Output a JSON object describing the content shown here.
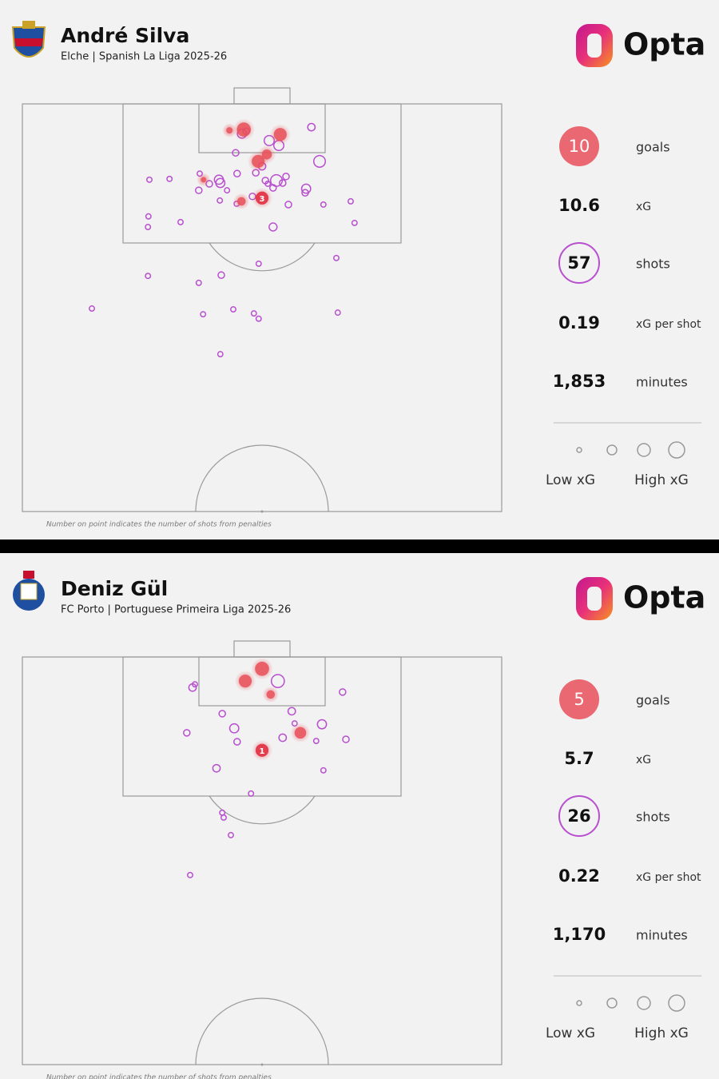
{
  "panels": [
    {
      "player": "André Silva",
      "team": "Elche | Spanish La Liga 2025-26",
      "brand": "Opta",
      "stats": [
        {
          "value": 10,
          "label": "goals"
        },
        {
          "value": "10.6",
          "label": "xG"
        },
        {
          "value": 57,
          "label": "shots"
        },
        {
          "value": "0.19",
          "label": "xG per shot"
        },
        {
          "value": "1,853",
          "label": "minutes"
        }
      ],
      "legend": [
        "Low xG",
        "High xG"
      ],
      "note": "Number on point indicates the number of shots from penalties",
      "shots": [
        {
          "x": 43.2,
          "y": 6.5,
          "xg": 0.05,
          "goal": true
        },
        {
          "x": 46.2,
          "y": 6.3,
          "xg": 0.5,
          "goal": true
        },
        {
          "x": 53.8,
          "y": 7.5,
          "xg": 0.4,
          "goal": true
        },
        {
          "x": 51.0,
          "y": 12.4,
          "xg": 0.2,
          "goal": true
        },
        {
          "x": 49.2,
          "y": 14.1,
          "xg": 0.4,
          "goal": true
        },
        {
          "x": 37.8,
          "y": 18.6,
          "xg": 0.03,
          "goal": true
        },
        {
          "x": 45.7,
          "y": 23.9,
          "xg": 0.12,
          "goal": true
        },
        {
          "x": 50.0,
          "y": 23.1,
          "xg": 0.4,
          "goal": true,
          "penalties": "3"
        },
        {
          "x": 45.8,
          "y": 7.3,
          "xg": 0.15,
          "goal": false
        },
        {
          "x": 46.7,
          "y": 6.7,
          "xg": 0.05,
          "goal": false
        },
        {
          "x": 60.3,
          "y": 5.7,
          "xg": 0.08,
          "goal": false
        },
        {
          "x": 51.5,
          "y": 9.0,
          "xg": 0.2,
          "goal": false
        },
        {
          "x": 53.5,
          "y": 10.2,
          "xg": 0.2,
          "goal": false
        },
        {
          "x": 44.5,
          "y": 12.0,
          "xg": 0.05,
          "goal": false
        },
        {
          "x": 62.0,
          "y": 14.1,
          "xg": 0.3,
          "goal": false
        },
        {
          "x": 50.0,
          "y": 15.3,
          "xg": 0.08,
          "goal": false
        },
        {
          "x": 48.7,
          "y": 16.9,
          "xg": 0.05,
          "goal": false
        },
        {
          "x": 44.8,
          "y": 17.1,
          "xg": 0.05,
          "goal": false
        },
        {
          "x": 41.0,
          "y": 18.6,
          "xg": 0.15,
          "goal": false
        },
        {
          "x": 41.3,
          "y": 19.4,
          "xg": 0.15,
          "goal": false
        },
        {
          "x": 37.0,
          "y": 17.1,
          "xg": 0.02,
          "goal": false
        },
        {
          "x": 39.0,
          "y": 19.6,
          "xg": 0.05,
          "goal": false
        },
        {
          "x": 53.0,
          "y": 18.8,
          "xg": 0.3,
          "goal": false
        },
        {
          "x": 55.0,
          "y": 17.8,
          "xg": 0.05,
          "goal": false
        },
        {
          "x": 50.7,
          "y": 18.8,
          "xg": 0.05,
          "goal": false
        },
        {
          "x": 54.3,
          "y": 19.4,
          "xg": 0.05,
          "goal": false
        },
        {
          "x": 51.2,
          "y": 19.6,
          "xg": 0.02,
          "goal": false
        },
        {
          "x": 36.8,
          "y": 21.2,
          "xg": 0.05,
          "goal": false
        },
        {
          "x": 42.7,
          "y": 21.2,
          "xg": 0.02,
          "goal": false
        },
        {
          "x": 59.2,
          "y": 20.8,
          "xg": 0.15,
          "goal": false
        },
        {
          "x": 59.0,
          "y": 21.8,
          "xg": 0.05,
          "goal": false
        },
        {
          "x": 52.3,
          "y": 20.6,
          "xg": 0.05,
          "goal": false
        },
        {
          "x": 48.0,
          "y": 22.7,
          "xg": 0.05,
          "goal": false
        },
        {
          "x": 44.7,
          "y": 24.5,
          "xg": 0.02,
          "goal": false
        },
        {
          "x": 41.2,
          "y": 23.7,
          "xg": 0.02,
          "goal": false
        },
        {
          "x": 55.5,
          "y": 24.7,
          "xg": 0.05,
          "goal": false
        },
        {
          "x": 62.8,
          "y": 24.7,
          "xg": 0.02,
          "goal": false
        },
        {
          "x": 68.5,
          "y": 23.9,
          "xg": 0.02,
          "goal": false
        },
        {
          "x": 26.5,
          "y": 18.6,
          "xg": 0.02,
          "goal": false
        },
        {
          "x": 30.7,
          "y": 18.4,
          "xg": 0.02,
          "goal": false
        },
        {
          "x": 26.3,
          "y": 27.6,
          "xg": 0.02,
          "goal": false
        },
        {
          "x": 26.2,
          "y": 30.2,
          "xg": 0.02,
          "goal": false
        },
        {
          "x": 33.0,
          "y": 29.0,
          "xg": 0.02,
          "goal": false
        },
        {
          "x": 69.3,
          "y": 29.2,
          "xg": 0.02,
          "goal": false
        },
        {
          "x": 52.3,
          "y": 30.2,
          "xg": 0.1,
          "goal": false
        },
        {
          "x": 65.5,
          "y": 37.8,
          "xg": 0.02,
          "goal": false
        },
        {
          "x": 49.3,
          "y": 39.2,
          "xg": 0.02,
          "goal": false
        },
        {
          "x": 26.2,
          "y": 42.2,
          "xg": 0.02,
          "goal": false
        },
        {
          "x": 41.5,
          "y": 42.0,
          "xg": 0.05,
          "goal": false
        },
        {
          "x": 36.8,
          "y": 43.9,
          "xg": 0.02,
          "goal": false
        },
        {
          "x": 14.5,
          "y": 50.2,
          "xg": 0.02,
          "goal": false
        },
        {
          "x": 37.7,
          "y": 51.6,
          "xg": 0.02,
          "goal": false
        },
        {
          "x": 44.0,
          "y": 50.4,
          "xg": 0.02,
          "goal": false
        },
        {
          "x": 48.3,
          "y": 51.4,
          "xg": 0.02,
          "goal": false
        },
        {
          "x": 49.3,
          "y": 52.7,
          "xg": 0.02,
          "goal": false
        },
        {
          "x": 65.8,
          "y": 51.2,
          "xg": 0.02,
          "goal": false
        },
        {
          "x": 41.3,
          "y": 61.4,
          "xg": 0.02,
          "goal": false
        }
      ]
    },
    {
      "player": "Deniz Gül",
      "team": "FC Porto | Portuguese Primeira Liga 2025-26",
      "brand": "Opta",
      "stats": [
        {
          "value": 5,
          "label": "goals"
        },
        {
          "value": "5.7",
          "label": "xG"
        },
        {
          "value": 26,
          "label": "shots"
        },
        {
          "value": "0.22",
          "label": "xG per shot"
        },
        {
          "value": "1,170",
          "label": "minutes"
        }
      ],
      "legend": [
        "Low xG",
        "High xG"
      ],
      "note": "Number on point indicates the number of shots from penalties",
      "shots": [
        {
          "x": 50.0,
          "y": 2.9,
          "xg": 0.5,
          "goal": true
        },
        {
          "x": 46.5,
          "y": 5.9,
          "xg": 0.4,
          "goal": true
        },
        {
          "x": 51.8,
          "y": 9.2,
          "xg": 0.12,
          "goal": true
        },
        {
          "x": 58.0,
          "y": 18.6,
          "xg": 0.3,
          "goal": true
        },
        {
          "x": 50.0,
          "y": 22.9,
          "xg": 0.4,
          "goal": true,
          "penalties": "1"
        },
        {
          "x": 53.3,
          "y": 5.9,
          "xg": 0.4,
          "goal": false
        },
        {
          "x": 35.5,
          "y": 7.5,
          "xg": 0.08,
          "goal": false
        },
        {
          "x": 36.0,
          "y": 6.7,
          "xg": 0.02,
          "goal": false
        },
        {
          "x": 66.8,
          "y": 8.6,
          "xg": 0.05,
          "goal": false
        },
        {
          "x": 41.7,
          "y": 13.9,
          "xg": 0.05,
          "goal": false
        },
        {
          "x": 56.2,
          "y": 13.3,
          "xg": 0.08,
          "goal": false
        },
        {
          "x": 44.2,
          "y": 17.5,
          "xg": 0.15,
          "goal": false
        },
        {
          "x": 62.5,
          "y": 16.5,
          "xg": 0.15,
          "goal": false
        },
        {
          "x": 56.8,
          "y": 16.3,
          "xg": 0.02,
          "goal": false
        },
        {
          "x": 34.3,
          "y": 18.6,
          "xg": 0.05,
          "goal": false
        },
        {
          "x": 44.8,
          "y": 20.8,
          "xg": 0.05,
          "goal": false
        },
        {
          "x": 54.3,
          "y": 19.8,
          "xg": 0.08,
          "goal": false
        },
        {
          "x": 61.3,
          "y": 20.6,
          "xg": 0.02,
          "goal": false
        },
        {
          "x": 67.5,
          "y": 20.2,
          "xg": 0.05,
          "goal": false
        },
        {
          "x": 40.5,
          "y": 27.3,
          "xg": 0.08,
          "goal": false
        },
        {
          "x": 62.8,
          "y": 27.8,
          "xg": 0.02,
          "goal": false
        },
        {
          "x": 47.7,
          "y": 33.5,
          "xg": 0.02,
          "goal": false
        },
        {
          "x": 41.7,
          "y": 38.2,
          "xg": 0.02,
          "goal": false
        },
        {
          "x": 42.0,
          "y": 39.4,
          "xg": 0.02,
          "goal": false
        },
        {
          "x": 43.5,
          "y": 43.7,
          "xg": 0.02,
          "goal": false
        },
        {
          "x": 35.0,
          "y": 53.5,
          "xg": 0.02,
          "goal": false
        }
      ]
    }
  ]
}
